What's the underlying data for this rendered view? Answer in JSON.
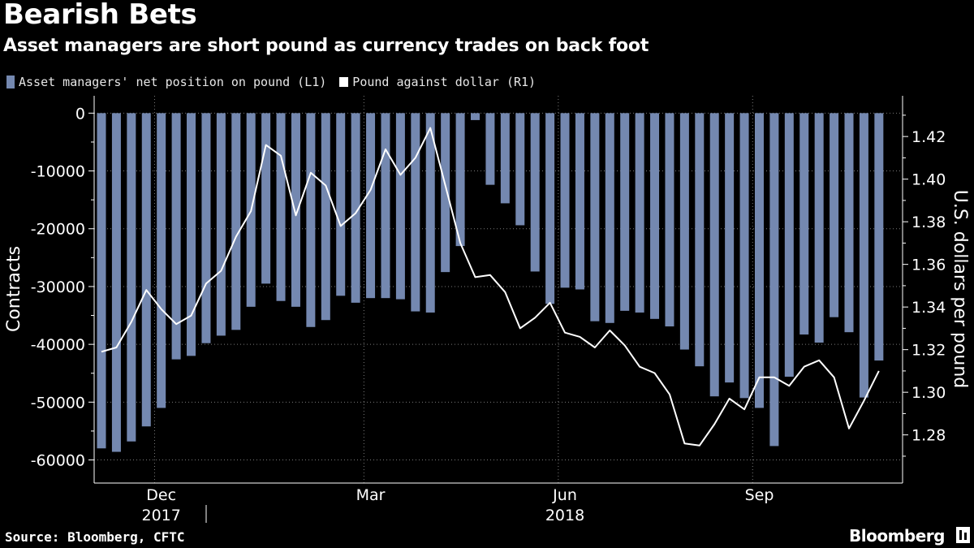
{
  "header": {
    "title": "Bearish Bets",
    "subtitle": "Asset managers are short pound as currency trades on back foot"
  },
  "footer": {
    "source": "Source: Bloomberg, CFTC",
    "brand": "Bloomberg"
  },
  "colors": {
    "bars": "#7488b0",
    "line": "#ffffff",
    "background": "#000000",
    "grid": "#7a7a7a"
  },
  "chart_data": {
    "type": "bar",
    "title": "Bearish Bets",
    "subtitle": "Asset managers are short pound as currency trades on back foot",
    "legend_position": "top-left",
    "x_ticks": [
      {
        "label": "Dec",
        "year": "2017",
        "index": 4
      },
      {
        "label": "Mar",
        "year": "",
        "index": 18
      },
      {
        "label": "Jun",
        "year": "2018",
        "index": 31
      },
      {
        "label": "Sep",
        "year": "",
        "index": 44
      }
    ],
    "left_axis": {
      "label": "Contracts",
      "range": [
        -64000,
        3000
      ],
      "ticks": [
        0,
        -10000,
        -20000,
        -30000,
        -40000,
        -50000,
        -60000
      ],
      "tick_labels": [
        "0",
        "-10000",
        "-20000",
        "-30000",
        "-40000",
        "-50000",
        "-60000"
      ]
    },
    "right_axis": {
      "label": "U.S. dollars per pound",
      "range": [
        1.2574,
        1.4391
      ],
      "ticks": [
        1.28,
        1.3,
        1.32,
        1.34,
        1.36,
        1.38,
        1.4,
        1.42
      ],
      "tick_labels": [
        "1.28",
        "1.30",
        "1.32",
        "1.34",
        "1.36",
        "1.38",
        "1.40",
        "1.42"
      ]
    },
    "series": [
      {
        "name": "Asset managers' net position on pound (L1)",
        "type": "bar",
        "axis": "left",
        "values": [
          -58000,
          -58600,
          -56800,
          -54200,
          -51000,
          -42600,
          -42000,
          -39800,
          -38500,
          -37500,
          -33500,
          -29500,
          -32500,
          -33500,
          -37000,
          -35800,
          -31600,
          -32800,
          -32000,
          -32000,
          -32200,
          -34300,
          -34500,
          -27500,
          -23000,
          -1200,
          -12400,
          -15600,
          -19400,
          -27400,
          -33000,
          -30200,
          -30500,
          -36000,
          -36300,
          -34200,
          -34500,
          -35600,
          -36900,
          -40900,
          -43800,
          -49000,
          -46600,
          -49300,
          -51000,
          -57600,
          -45600,
          -38300,
          -39700,
          -35300,
          -37900,
          -49200,
          -42800
        ]
      },
      {
        "name": "Pound against dollar (R1)",
        "type": "line",
        "axis": "right",
        "values": [
          1.319,
          1.321,
          1.333,
          1.348,
          1.339,
          1.332,
          1.336,
          1.351,
          1.357,
          1.373,
          1.385,
          1.416,
          1.411,
          1.383,
          1.403,
          1.397,
          1.378,
          1.384,
          1.395,
          1.414,
          1.402,
          1.41,
          1.424,
          1.397,
          1.37,
          1.354,
          1.355,
          1.347,
          1.33,
          1.335,
          1.342,
          1.328,
          1.326,
          1.321,
          1.329,
          1.322,
          1.312,
          1.309,
          1.299,
          1.276,
          1.275,
          1.285,
          1.297,
          1.292,
          1.307,
          1.307,
          1.303,
          1.312,
          1.315,
          1.307,
          1.283,
          1.296,
          1.31
        ]
      }
    ]
  }
}
